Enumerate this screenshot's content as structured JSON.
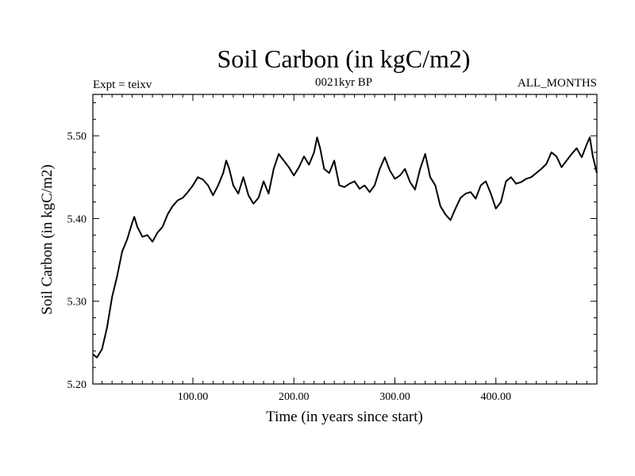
{
  "chart_data": {
    "type": "line",
    "title": "Soil Carbon (in kgC/m2)",
    "subtitle_left": "Expt = teixv",
    "subtitle_center": "0021kyr BP",
    "subtitle_right": "ALL_MONTHS",
    "xlabel": "Time (in years since start)",
    "ylabel": "Soil Carbon (in kgC/m2)",
    "xlim": [
      1,
      500
    ],
    "ylim": [
      5.2,
      5.55
    ],
    "xticks": [
      {
        "value": 100,
        "label": "100.00"
      },
      {
        "value": 200,
        "label": "200.00"
      },
      {
        "value": 300,
        "label": "300.00"
      },
      {
        "value": 400,
        "label": "400.00"
      }
    ],
    "yticks": [
      {
        "value": 5.2,
        "label": "5.20"
      },
      {
        "value": 5.3,
        "label": "5.30"
      },
      {
        "value": 5.4,
        "label": "5.40"
      },
      {
        "value": 5.5,
        "label": "5.50"
      }
    ],
    "grid": false,
    "series": [
      {
        "color": "#000000",
        "x": [
          1,
          5,
          10,
          15,
          20,
          25,
          30,
          35,
          40,
          42,
          45,
          50,
          55,
          60,
          65,
          70,
          75,
          80,
          85,
          90,
          95,
          100,
          105,
          110,
          115,
          120,
          125,
          130,
          133,
          136,
          140,
          145,
          150,
          155,
          160,
          165,
          170,
          175,
          180,
          185,
          190,
          195,
          200,
          205,
          210,
          215,
          220,
          223,
          226,
          230,
          235,
          240,
          245,
          250,
          255,
          260,
          265,
          270,
          275,
          280,
          285,
          290,
          295,
          300,
          305,
          310,
          315,
          320,
          325,
          330,
          335,
          340,
          345,
          350,
          355,
          360,
          365,
          370,
          375,
          380,
          385,
          390,
          395,
          400,
          405,
          410,
          415,
          420,
          425,
          430,
          435,
          440,
          445,
          450,
          455,
          460,
          465,
          470,
          475,
          480,
          485,
          490,
          493,
          496,
          500
        ],
        "y": [
          5.236,
          5.232,
          5.242,
          5.268,
          5.305,
          5.33,
          5.36,
          5.375,
          5.395,
          5.402,
          5.39,
          5.378,
          5.38,
          5.372,
          5.383,
          5.39,
          5.405,
          5.415,
          5.422,
          5.425,
          5.432,
          5.44,
          5.45,
          5.447,
          5.44,
          5.428,
          5.44,
          5.455,
          5.47,
          5.46,
          5.44,
          5.43,
          5.45,
          5.428,
          5.418,
          5.425,
          5.445,
          5.43,
          5.46,
          5.478,
          5.47,
          5.462,
          5.452,
          5.462,
          5.475,
          5.465,
          5.48,
          5.498,
          5.485,
          5.46,
          5.455,
          5.47,
          5.44,
          5.438,
          5.442,
          5.445,
          5.436,
          5.44,
          5.432,
          5.44,
          5.46,
          5.474,
          5.458,
          5.448,
          5.452,
          5.46,
          5.444,
          5.435,
          5.46,
          5.478,
          5.45,
          5.44,
          5.415,
          5.405,
          5.398,
          5.412,
          5.425,
          5.43,
          5.432,
          5.424,
          5.44,
          5.445,
          5.43,
          5.412,
          5.42,
          5.445,
          5.45,
          5.442,
          5.444,
          5.448,
          5.45,
          5.455,
          5.46,
          5.466,
          5.48,
          5.475,
          5.462,
          5.47,
          5.478,
          5.485,
          5.474,
          5.49,
          5.498,
          5.475,
          5.455
        ]
      }
    ]
  }
}
